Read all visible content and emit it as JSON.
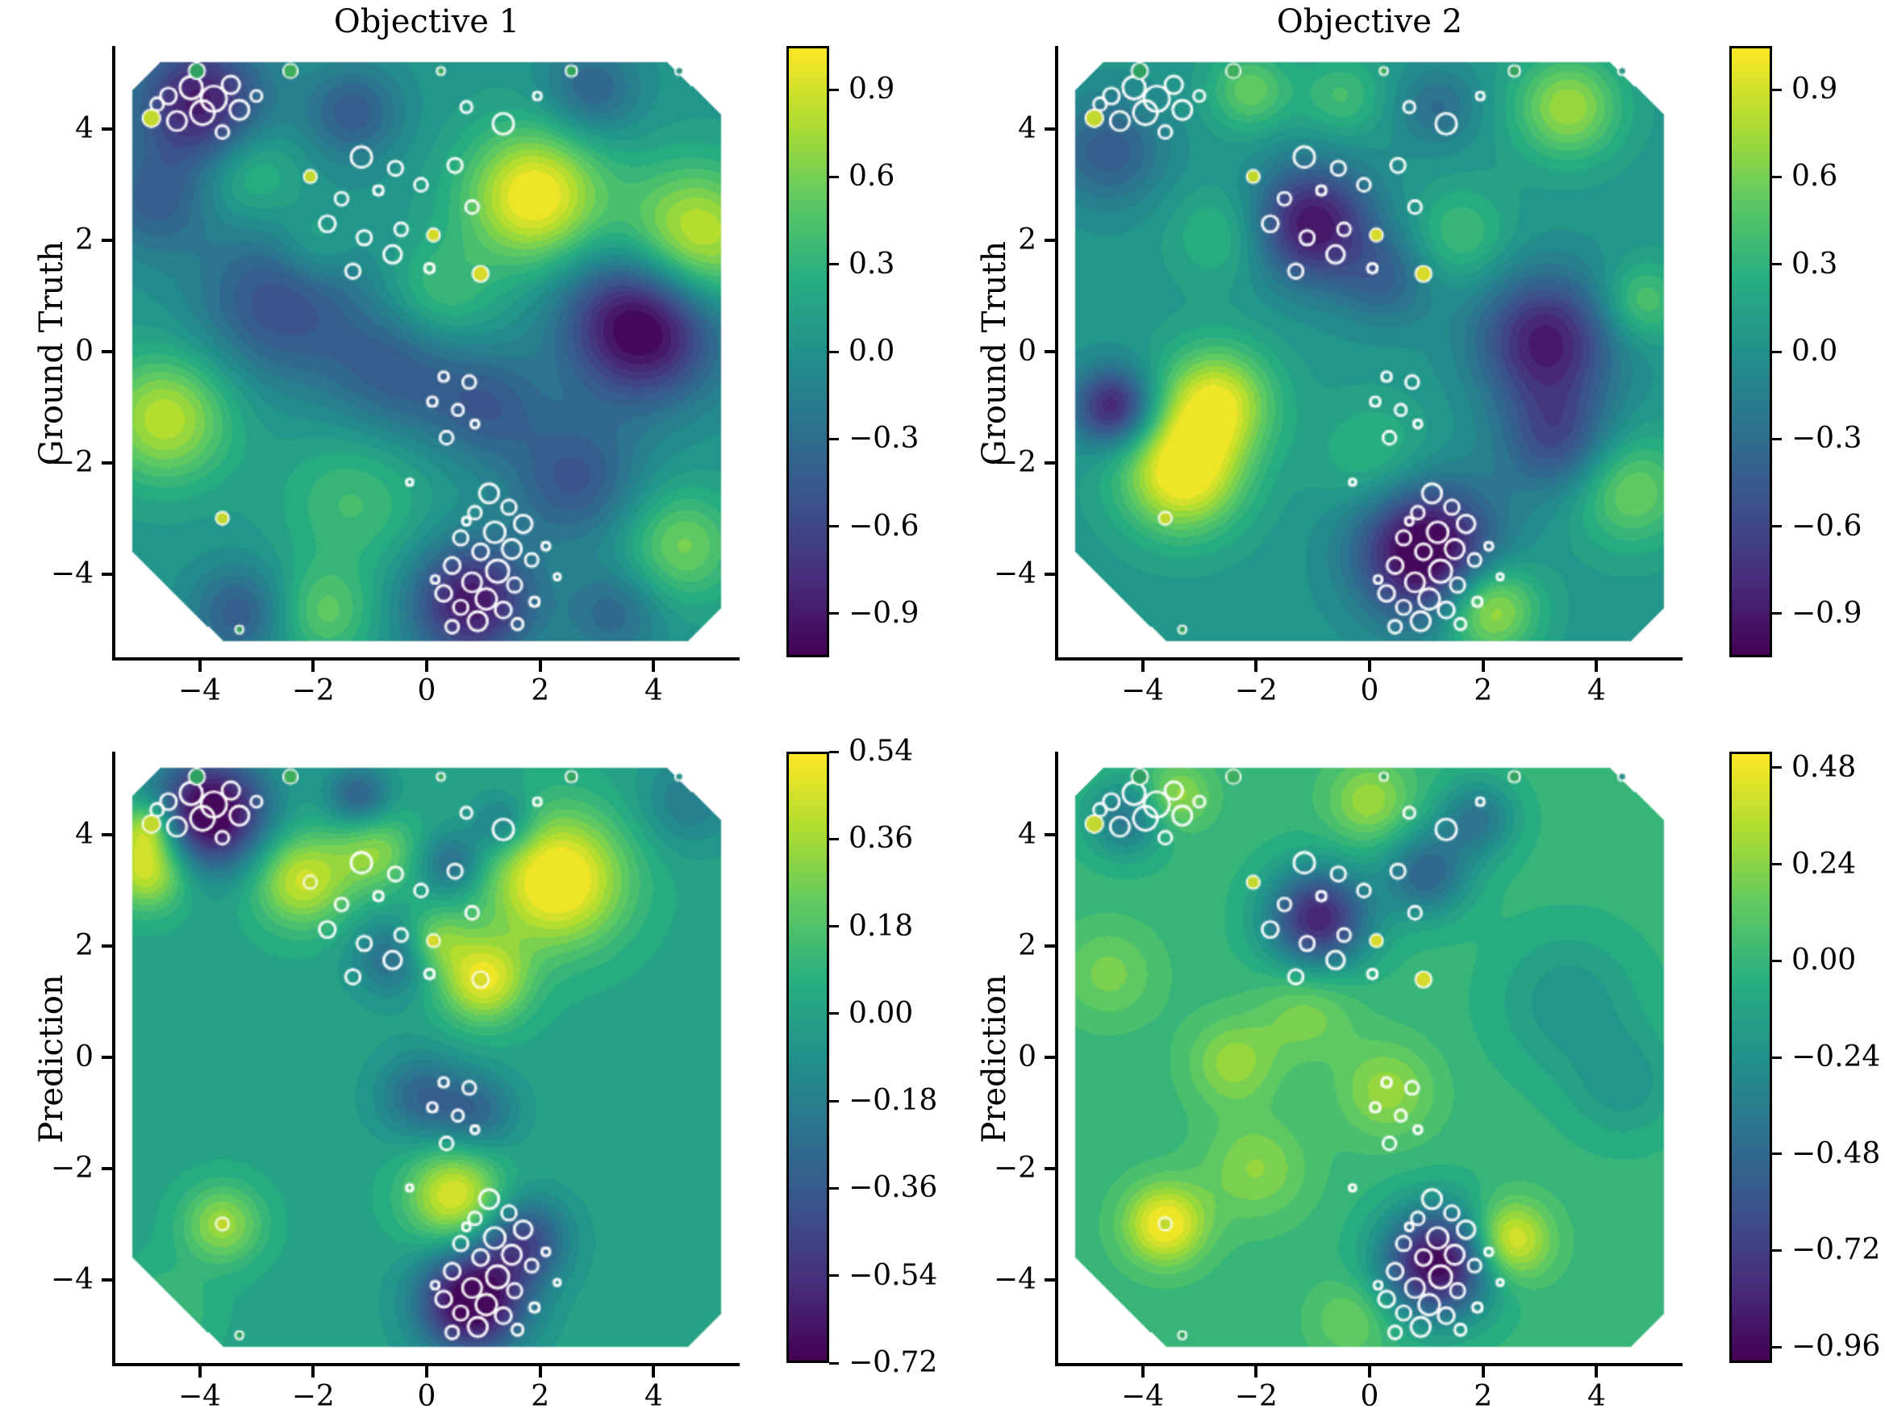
{
  "figure": {
    "col_titles": [
      "Objective 1",
      "Objective 2"
    ],
    "row_labels": [
      "Ground Truth",
      "Prediction"
    ]
  },
  "chart_data": {
    "type": "contour",
    "layout": "2x2 grid; rows = Ground Truth / Prediction, cols = Objective 1 / Objective 2",
    "x_range": [
      -5.5,
      5.5
    ],
    "y_range": [
      -5.5,
      5.5
    ],
    "x_tick_values": [
      -4,
      -2,
      0,
      2,
      4
    ],
    "x_tick_labels": [
      "−4",
      "−2",
      "0",
      "2",
      "4"
    ],
    "y_tick_values": [
      4,
      2,
      0,
      -2,
      -4
    ],
    "y_tick_labels": [
      "4",
      "2",
      "0",
      "−2",
      "−4"
    ],
    "colormap": {
      "name": "viridis",
      "stops": [
        [
          0,
          "#440154"
        ],
        [
          0.125,
          "#472d7b"
        ],
        [
          0.25,
          "#3b528b"
        ],
        [
          0.375,
          "#2c728e"
        ],
        [
          0.5,
          "#21918c"
        ],
        [
          0.625,
          "#28ae80"
        ],
        [
          0.75,
          "#5ec962"
        ],
        [
          0.875,
          "#addc30"
        ],
        [
          1,
          "#fde725"
        ]
      ]
    },
    "panels": [
      {
        "id": "ground-truth-objective-1",
        "title": "Objective 1",
        "ylabel": "Ground Truth",
        "row": 0,
        "col": 0,
        "vmin": -1.05,
        "vmax": 1.05,
        "base": 0.05,
        "colorbar_tick_values": [
          0.9,
          0.6,
          0.3,
          0.0,
          -0.3,
          -0.6,
          -0.9
        ],
        "colorbar_tick_labels": [
          "0.9",
          "0.6",
          "0.3",
          "0.0",
          "−0.3",
          "−0.6",
          "−0.9"
        ],
        "features": [
          {
            "x": 1.9,
            "y": 2.8,
            "amp": 1.05,
            "sigma": 0.85
          },
          {
            "x": 4.7,
            "y": 2.0,
            "amp": 0.95,
            "sigma": 0.9
          },
          {
            "x": 3.8,
            "y": 0.5,
            "amp": -1.25,
            "sigma": 0.95
          },
          {
            "x": -4.6,
            "y": -1.2,
            "amp": 0.8,
            "sigma": 0.8
          },
          {
            "x": -4.0,
            "y": 4.5,
            "amp": -0.95,
            "sigma": 0.8
          },
          {
            "x": -1.3,
            "y": 4.3,
            "amp": -0.5,
            "sigma": 0.6
          },
          {
            "x": -2.6,
            "y": 0.9,
            "amp": -0.6,
            "sigma": 1.0
          },
          {
            "x": -0.5,
            "y": -0.3,
            "amp": -0.5,
            "sigma": 0.9
          },
          {
            "x": 1.1,
            "y": -1.0,
            "amp": -0.45,
            "sigma": 0.7
          },
          {
            "x": 0.8,
            "y": -4.5,
            "amp": -1.0,
            "sigma": 0.75
          },
          {
            "x": 2.6,
            "y": -2.3,
            "amp": -0.55,
            "sigma": 0.8
          },
          {
            "x": 4.5,
            "y": -3.5,
            "amp": 0.55,
            "sigma": 0.7
          },
          {
            "x": -1.8,
            "y": -4.7,
            "amp": 0.45,
            "sigma": 0.6
          },
          {
            "x": -4.8,
            "y": 2.7,
            "amp": -0.45,
            "sigma": 0.7
          },
          {
            "x": -3.3,
            "y": -4.7,
            "amp": -0.5,
            "sigma": 0.6
          },
          {
            "x": 0.2,
            "y": 1.0,
            "amp": 0.4,
            "sigma": 0.7
          },
          {
            "x": -3.1,
            "y": 3.2,
            "amp": 0.35,
            "sigma": 0.6
          },
          {
            "x": 2.9,
            "y": 4.7,
            "amp": -0.45,
            "sigma": 0.6
          },
          {
            "x": -1.3,
            "y": -2.7,
            "amp": 0.35,
            "sigma": 0.9
          },
          {
            "x": 3.3,
            "y": -4.7,
            "amp": -0.4,
            "sigma": 0.6
          },
          {
            "x": -2.0,
            "y": 1.9,
            "amp": 0.3,
            "sigma": 0.5
          }
        ]
      },
      {
        "id": "ground-truth-objective-2",
        "title": "Objective 2",
        "ylabel": "Ground Truth",
        "row": 0,
        "col": 1,
        "vmin": -1.05,
        "vmax": 1.05,
        "base": 0.05,
        "colorbar_tick_values": [
          0.9,
          0.6,
          0.3,
          0.0,
          -0.3,
          -0.6,
          -0.9
        ],
        "colorbar_tick_labels": [
          "0.9",
          "0.6",
          "0.3",
          "0.0",
          "−0.3",
          "−0.6",
          "−0.9"
        ],
        "features": [
          {
            "x": -3.3,
            "y": -2.2,
            "amp": 1.05,
            "sigma": 0.75
          },
          {
            "x": -2.7,
            "y": -0.9,
            "amp": 0.9,
            "sigma": 0.7
          },
          {
            "x": -4.5,
            "y": -1.0,
            "amp": -0.95,
            "sigma": 0.5
          },
          {
            "x": 1.0,
            "y": -3.6,
            "amp": -1.25,
            "sigma": 0.85
          },
          {
            "x": -1.0,
            "y": 2.3,
            "amp": -1.0,
            "sigma": 0.75
          },
          {
            "x": 3.1,
            "y": 0.2,
            "amp": -0.95,
            "sigma": 0.85
          },
          {
            "x": 3.3,
            "y": -1.6,
            "amp": -0.6,
            "sigma": 0.7
          },
          {
            "x": 3.5,
            "y": 4.4,
            "amp": 0.7,
            "sigma": 0.65
          },
          {
            "x": 2.1,
            "y": -4.6,
            "amp": 0.85,
            "sigma": 0.6
          },
          {
            "x": 4.6,
            "y": -2.5,
            "amp": 0.55,
            "sigma": 0.7
          },
          {
            "x": -4.6,
            "y": 3.6,
            "amp": -0.5,
            "sigma": 0.7
          },
          {
            "x": -2.1,
            "y": 4.7,
            "amp": 0.5,
            "sigma": 0.5
          },
          {
            "x": 0.3,
            "y": 1.3,
            "amp": -0.4,
            "sigma": 0.6
          },
          {
            "x": 4.8,
            "y": 0.9,
            "amp": 0.45,
            "sigma": 0.5
          },
          {
            "x": 1.6,
            "y": 2.1,
            "amp": 0.35,
            "sigma": 0.6
          },
          {
            "x": -2.6,
            "y": 2.1,
            "amp": 0.3,
            "sigma": 0.6
          },
          {
            "x": 0.1,
            "y": -1.9,
            "amp": 0.3,
            "sigma": 0.7
          },
          {
            "x": -0.5,
            "y": 4.6,
            "amp": 0.35,
            "sigma": 0.5
          },
          {
            "x": 1.2,
            "y": 4.4,
            "amp": -0.35,
            "sigma": 0.5
          }
        ]
      },
      {
        "id": "prediction-objective-1",
        "title": "Objective 1",
        "ylabel": "Prediction",
        "row": 1,
        "col": 0,
        "vmin": -0.72,
        "vmax": 0.54,
        "base": 0.0,
        "colorbar_tick_values": [
          0.54,
          0.36,
          0.18,
          0.0,
          -0.18,
          -0.36,
          -0.54,
          -0.72
        ],
        "colorbar_tick_labels": [
          "0.54",
          "0.36",
          "0.18",
          "0.00",
          "−0.18",
          "−0.36",
          "−0.54",
          "−0.72"
        ],
        "features": [
          {
            "x": -3.8,
            "y": 4.4,
            "amp": -0.8,
            "sigma": 0.7
          },
          {
            "x": -4.9,
            "y": 3.4,
            "amp": 0.5,
            "sigma": 0.5
          },
          {
            "x": -4.9,
            "y": 4.15,
            "amp": 0.4,
            "sigma": 0.35
          },
          {
            "x": 2.3,
            "y": 3.2,
            "amp": 0.62,
            "sigma": 0.85
          },
          {
            "x": -2.2,
            "y": 3.2,
            "amp": 0.45,
            "sigma": 0.6
          },
          {
            "x": -0.9,
            "y": 3.7,
            "amp": 0.3,
            "sigma": 0.5
          },
          {
            "x": 1.0,
            "y": 1.4,
            "amp": 0.5,
            "sigma": 0.55
          },
          {
            "x": 0.15,
            "y": 2.1,
            "amp": 0.28,
            "sigma": 0.4
          },
          {
            "x": 0.5,
            "y": -2.5,
            "amp": 0.5,
            "sigma": 0.6
          },
          {
            "x": -3.6,
            "y": -3.0,
            "amp": 0.35,
            "sigma": 0.5
          },
          {
            "x": 0.8,
            "y": -4.4,
            "amp": -0.8,
            "sigma": 0.65
          },
          {
            "x": 1.7,
            "y": -3.3,
            "amp": -0.45,
            "sigma": 0.55
          },
          {
            "x": -0.6,
            "y": 1.8,
            "amp": -0.28,
            "sigma": 0.5
          },
          {
            "x": 0.45,
            "y": 3.5,
            "amp": -0.3,
            "sigma": 0.4
          },
          {
            "x": 1.35,
            "y": 4.2,
            "amp": -0.28,
            "sigma": 0.4
          },
          {
            "x": -0.1,
            "y": -0.7,
            "amp": -0.3,
            "sigma": 0.55
          },
          {
            "x": 0.9,
            "y": -1.0,
            "amp": -0.28,
            "sigma": 0.5
          },
          {
            "x": -1.2,
            "y": 4.7,
            "amp": -0.35,
            "sigma": 0.4
          },
          {
            "x": 4.6,
            "y": 4.6,
            "amp": -0.2,
            "sigma": 0.6
          },
          {
            "x": -4.6,
            "y": -4.6,
            "amp": 0.15,
            "sigma": 0.6
          }
        ]
      },
      {
        "id": "prediction-objective-2",
        "title": "Objective 2",
        "ylabel": "Prediction",
        "row": 1,
        "col": 1,
        "vmin": -1.0,
        "vmax": 0.52,
        "base": 0.0,
        "colorbar_tick_values": [
          0.48,
          0.24,
          0.0,
          -0.24,
          -0.48,
          -0.72,
          -0.96
        ],
        "colorbar_tick_labels": [
          "0.48",
          "0.24",
          "0.00",
          "−0.24",
          "−0.48",
          "−0.72",
          "−0.96"
        ],
        "features": [
          {
            "x": -0.9,
            "y": 2.5,
            "amp": -0.85,
            "sigma": 0.65
          },
          {
            "x": 1.2,
            "y": -3.7,
            "amp": -1.0,
            "sigma": 0.7
          },
          {
            "x": -3.6,
            "y": -3.0,
            "amp": 0.55,
            "sigma": 0.5
          },
          {
            "x": 2.45,
            "y": -3.3,
            "amp": 0.55,
            "sigma": 0.5
          },
          {
            "x": 1.0,
            "y": 3.3,
            "amp": -0.5,
            "sigma": 0.55
          },
          {
            "x": 1.9,
            "y": 4.3,
            "amp": -0.4,
            "sigma": 0.5
          },
          {
            "x": -2.4,
            "y": -0.1,
            "amp": 0.28,
            "sigma": 0.55
          },
          {
            "x": -2.0,
            "y": -2.0,
            "amp": 0.25,
            "sigma": 0.65
          },
          {
            "x": 0.3,
            "y": -0.6,
            "amp": 0.28,
            "sigma": 0.6
          },
          {
            "x": -4.3,
            "y": 4.3,
            "amp": -0.4,
            "sigma": 0.5
          },
          {
            "x": -3.4,
            "y": 4.7,
            "amp": 0.3,
            "sigma": 0.4
          },
          {
            "x": 0.0,
            "y": 4.6,
            "amp": 0.3,
            "sigma": 0.5
          },
          {
            "x": -1.1,
            "y": 0.8,
            "amp": 0.22,
            "sigma": 0.6
          },
          {
            "x": 3.5,
            "y": 1.0,
            "amp": -0.22,
            "sigma": 0.9
          },
          {
            "x": -4.6,
            "y": 1.5,
            "amp": 0.2,
            "sigma": 0.6
          },
          {
            "x": -0.3,
            "y": -4.7,
            "amp": 0.2,
            "sigma": 0.5
          },
          {
            "x": 4.5,
            "y": -0.5,
            "amp": -0.2,
            "sigma": 0.7
          }
        ]
      }
    ],
    "sample_points": [
      {
        "x": -4.55,
        "y": 4.6,
        "r": 10,
        "fill": null
      },
      {
        "x": -4.15,
        "y": 4.75,
        "r": 14,
        "fill": null
      },
      {
        "x": -3.75,
        "y": 4.55,
        "r": 16,
        "fill": null
      },
      {
        "x": -3.45,
        "y": 4.8,
        "r": 11,
        "fill": null
      },
      {
        "x": -4.4,
        "y": 4.15,
        "r": 12,
        "fill": null
      },
      {
        "x": -3.95,
        "y": 4.3,
        "r": 15,
        "fill": null
      },
      {
        "x": -3.3,
        "y": 4.35,
        "r": 12,
        "fill": null
      },
      {
        "x": -4.75,
        "y": 4.45,
        "r": 8,
        "fill": null
      },
      {
        "x": -3.0,
        "y": 4.6,
        "r": 7,
        "fill": null
      },
      {
        "x": -3.6,
        "y": 3.95,
        "r": 8,
        "fill": null
      },
      {
        "x": -4.85,
        "y": 4.2,
        "r": 11,
        "fill": "#c3d82e"
      },
      {
        "x": -4.05,
        "y": 5.05,
        "r": 10,
        "fill": "#2fa05f"
      },
      {
        "x": -2.4,
        "y": 5.05,
        "r": 9,
        "fill": "#3dae5c"
      },
      {
        "x": 0.25,
        "y": 5.05,
        "r": 5,
        "fill": "#3dae5c"
      },
      {
        "x": 2.55,
        "y": 5.05,
        "r": 7,
        "fill": "#35a55e"
      },
      {
        "x": 4.45,
        "y": 5.05,
        "r": 5,
        "fill": "#2a8f85"
      },
      {
        "x": -3.3,
        "y": -5.0,
        "r": 5,
        "fill": "#35a55e"
      },
      {
        "x": -2.05,
        "y": 3.15,
        "r": 8,
        "fill": "#c3d82e"
      },
      {
        "x": -1.15,
        "y": 3.5,
        "r": 13,
        "fill": null
      },
      {
        "x": -0.55,
        "y": 3.3,
        "r": 9,
        "fill": null
      },
      {
        "x": -1.5,
        "y": 2.75,
        "r": 8,
        "fill": null
      },
      {
        "x": -0.85,
        "y": 2.9,
        "r": 6,
        "fill": null
      },
      {
        "x": -0.1,
        "y": 3.0,
        "r": 8,
        "fill": null
      },
      {
        "x": 0.5,
        "y": 3.35,
        "r": 9,
        "fill": null
      },
      {
        "x": -1.75,
        "y": 2.3,
        "r": 10,
        "fill": null
      },
      {
        "x": -1.1,
        "y": 2.05,
        "r": 9,
        "fill": null
      },
      {
        "x": -0.45,
        "y": 2.2,
        "r": 8,
        "fill": null
      },
      {
        "x": 0.12,
        "y": 2.1,
        "r": 8,
        "fill": "#d5da2b"
      },
      {
        "x": 0.8,
        "y": 2.6,
        "r": 8,
        "fill": null
      },
      {
        "x": -0.6,
        "y": 1.75,
        "r": 11,
        "fill": null
      },
      {
        "x": 0.05,
        "y": 1.5,
        "r": 6,
        "fill": null
      },
      {
        "x": -1.3,
        "y": 1.45,
        "r": 9,
        "fill": null
      },
      {
        "x": 0.95,
        "y": 1.4,
        "r": 10,
        "fill": "#d5da2b"
      },
      {
        "x": 1.35,
        "y": 4.1,
        "r": 13,
        "fill": null
      },
      {
        "x": 0.7,
        "y": 4.4,
        "r": 7,
        "fill": null
      },
      {
        "x": 1.95,
        "y": 4.6,
        "r": 5,
        "fill": null
      },
      {
        "x": 0.3,
        "y": -0.45,
        "r": 6,
        "fill": null
      },
      {
        "x": 0.75,
        "y": -0.55,
        "r": 8,
        "fill": null
      },
      {
        "x": 0.1,
        "y": -0.9,
        "r": 6,
        "fill": null
      },
      {
        "x": 0.55,
        "y": -1.05,
        "r": 7,
        "fill": null
      },
      {
        "x": 0.35,
        "y": -1.55,
        "r": 8,
        "fill": null
      },
      {
        "x": 0.85,
        "y": -1.3,
        "r": 5,
        "fill": null
      },
      {
        "x": -0.3,
        "y": -2.35,
        "r": 4,
        "fill": null
      },
      {
        "x": -3.6,
        "y": -3.0,
        "r": 8,
        "fill": "#c3d82e"
      },
      {
        "x": 1.1,
        "y": -2.55,
        "r": 12,
        "fill": null
      },
      {
        "x": 1.45,
        "y": -2.8,
        "r": 9,
        "fill": null
      },
      {
        "x": 0.85,
        "y": -2.9,
        "r": 8,
        "fill": null
      },
      {
        "x": 1.7,
        "y": -3.1,
        "r": 11,
        "fill": null
      },
      {
        "x": 1.2,
        "y": -3.25,
        "r": 13,
        "fill": null
      },
      {
        "x": 0.6,
        "y": -3.35,
        "r": 9,
        "fill": null
      },
      {
        "x": 1.5,
        "y": -3.55,
        "r": 12,
        "fill": null
      },
      {
        "x": 0.95,
        "y": -3.6,
        "r": 10,
        "fill": null
      },
      {
        "x": 1.85,
        "y": -3.75,
        "r": 8,
        "fill": null
      },
      {
        "x": 0.45,
        "y": -3.85,
        "r": 10,
        "fill": null
      },
      {
        "x": 1.25,
        "y": -3.95,
        "r": 14,
        "fill": null
      },
      {
        "x": 0.8,
        "y": -4.15,
        "r": 12,
        "fill": null
      },
      {
        "x": 1.55,
        "y": -4.2,
        "r": 9,
        "fill": null
      },
      {
        "x": 0.3,
        "y": -4.35,
        "r": 10,
        "fill": null
      },
      {
        "x": 1.05,
        "y": -4.45,
        "r": 13,
        "fill": null
      },
      {
        "x": 0.6,
        "y": -4.6,
        "r": 9,
        "fill": null
      },
      {
        "x": 1.35,
        "y": -4.65,
        "r": 10,
        "fill": null
      },
      {
        "x": 0.9,
        "y": -4.85,
        "r": 12,
        "fill": null
      },
      {
        "x": 0.45,
        "y": -4.95,
        "r": 8,
        "fill": null
      },
      {
        "x": 1.6,
        "y": -4.9,
        "r": 7,
        "fill": null
      },
      {
        "x": 2.1,
        "y": -3.5,
        "r": 5,
        "fill": null
      },
      {
        "x": 2.3,
        "y": -4.05,
        "r": 4,
        "fill": null
      },
      {
        "x": 0.15,
        "y": -4.1,
        "r": 5,
        "fill": null
      },
      {
        "x": 1.9,
        "y": -4.5,
        "r": 6,
        "fill": null
      },
      {
        "x": 0.7,
        "y": -3.05,
        "r": 5,
        "fill": null
      }
    ]
  }
}
